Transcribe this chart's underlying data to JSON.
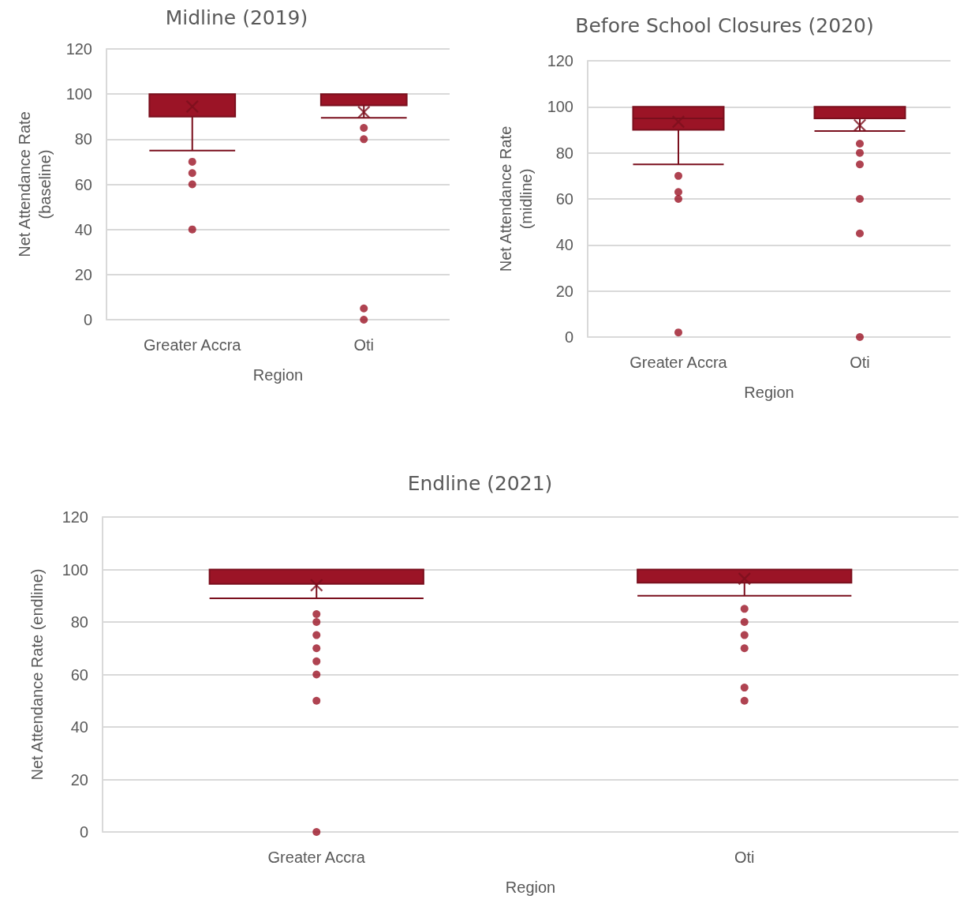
{
  "chart_data": [
    {
      "type": "box",
      "title": "Midline (2019)",
      "xlabel": "Region",
      "ylabel": "Net Attendance Rate\n(baseline)",
      "categories": [
        "Greater Accra",
        "Oti"
      ],
      "ylim": [
        0,
        120
      ],
      "yticks": [
        0,
        20,
        40,
        60,
        80,
        100,
        120
      ],
      "grid": "y",
      "series": [
        {
          "color": "#9b1426",
          "boxes": [
            {
              "low": 75,
              "q1": 90,
              "median": 100,
              "q3": 100,
              "high": 100,
              "mean": 94.5,
              "outliers": [
                70,
                65,
                60,
                40
              ]
            },
            {
              "low": 89.5,
              "q1": 95,
              "median": 100,
              "q3": 100,
              "high": 100,
              "mean": 92,
              "outliers": [
                85,
                80,
                5,
                0
              ]
            }
          ]
        }
      ]
    },
    {
      "type": "box",
      "title": "Before School Closures (2020)",
      "xlabel": "Region",
      "ylabel": "Net Attendance Rate\n(midline)",
      "categories": [
        "Greater Accra",
        "Oti"
      ],
      "ylim": [
        0,
        120
      ],
      "yticks": [
        0,
        20,
        40,
        60,
        80,
        100,
        120
      ],
      "grid": "y",
      "series": [
        {
          "color": "#9b1426",
          "boxes": [
            {
              "low": 75,
              "q1": 90,
              "median": 95,
              "q3": 100,
              "high": 100,
              "mean": 93.5,
              "outliers": [
                70,
                63,
                60,
                2
              ]
            },
            {
              "low": 89.5,
              "q1": 95,
              "median": 100,
              "q3": 100,
              "high": 100,
              "mean": 92,
              "outliers": [
                84,
                80,
                75,
                60,
                45,
                0
              ]
            }
          ]
        }
      ]
    },
    {
      "type": "box",
      "title": "Endline (2021)",
      "xlabel": "Region",
      "ylabel": "Net Attendance Rate (endline)",
      "categories": [
        "Greater Accra",
        "Oti"
      ],
      "ylim": [
        0,
        120
      ],
      "yticks": [
        0,
        20,
        40,
        60,
        80,
        100,
        120
      ],
      "grid": "y",
      "series": [
        {
          "color": "#9b1426",
          "boxes": [
            {
              "low": 89,
              "q1": 94.5,
              "median": 100,
              "q3": 100,
              "high": 100,
              "mean": 94,
              "outliers": [
                83,
                80,
                75,
                70,
                65,
                60,
                50,
                0
              ]
            },
            {
              "low": 90,
              "q1": 95,
              "median": 100,
              "q3": 100,
              "high": 100,
              "mean": 96.5,
              "outliers": [
                85,
                80,
                75,
                70,
                55,
                50
              ]
            }
          ]
        }
      ]
    }
  ]
}
